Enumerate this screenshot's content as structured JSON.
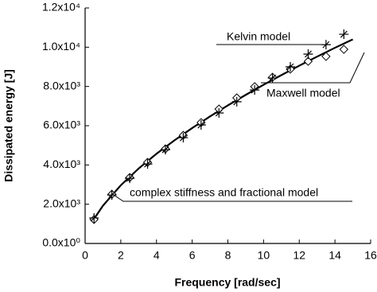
{
  "chart_data": {
    "type": "scatter",
    "x_label": "Frequency [rad/sec]",
    "y_label": "Dissipated energy [J]",
    "xlim": [
      0,
      16
    ],
    "xticks": [
      0,
      2,
      4,
      6,
      8,
      10,
      12,
      14,
      16
    ],
    "ylim": [
      0,
      12000
    ],
    "yticks": [
      {
        "value": 0,
        "label": "0.0x10⁰"
      },
      {
        "value": 2000,
        "label": "2.0x10³"
      },
      {
        "value": 4000,
        "label": "4.0x10³"
      },
      {
        "value": 6000,
        "label": "6.0x10³"
      },
      {
        "value": 8000,
        "label": "8.0x10³"
      },
      {
        "value": 10000,
        "label": "1.0x10⁴"
      },
      {
        "value": 12000,
        "label": "1.2x10⁴"
      }
    ],
    "series": [
      {
        "name": "Kelvin model",
        "color": "#000000",
        "marker": "star",
        "x": [
          0.5,
          1.5,
          2.5,
          3.5,
          4.5,
          5.5,
          6.5,
          7.5,
          8.5,
          9.5,
          10.5,
          11.5,
          12.5,
          13.5,
          14.5
        ],
        "values": [
          1300,
          2470,
          3320,
          4050,
          4780,
          5390,
          6040,
          6650,
          7220,
          7820,
          8430,
          9000,
          9650,
          10130,
          10660
        ]
      },
      {
        "name": "Maxwell model",
        "color": "#000000",
        "marker": "diamond",
        "x": [
          0.5,
          1.5,
          2.5,
          3.5,
          4.5,
          5.5,
          6.5,
          7.5,
          8.5,
          9.5,
          10.5,
          11.5,
          12.5,
          13.5,
          14.5
        ],
        "values": [
          1220,
          2510,
          3360,
          4130,
          4820,
          5510,
          6160,
          6850,
          7420,
          7990,
          8470,
          8880,
          9280,
          9530,
          9890
        ]
      },
      {
        "name": "complex stiffness and fractional model",
        "color": "#000000",
        "marker": "line",
        "x": [
          0.5,
          1,
          2,
          3,
          4,
          5,
          6,
          7,
          8,
          9,
          10,
          11,
          12,
          13,
          14,
          15
        ],
        "values": [
          1250,
          1926,
          2966,
          3819,
          4569,
          5250,
          5880,
          6474,
          7034,
          7571,
          8084,
          8580,
          9058,
          9520,
          9971,
          10400
        ]
      }
    ]
  }
}
